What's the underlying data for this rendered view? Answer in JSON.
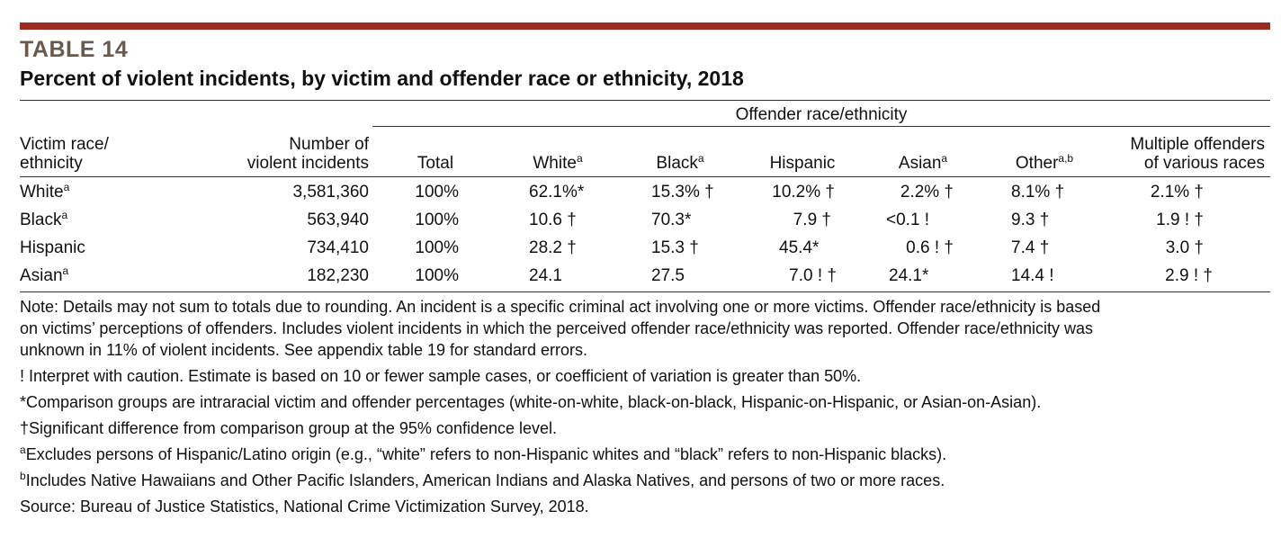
{
  "table_number": "TABLE 14",
  "title": "Percent of violent incidents, by victim and offender race or ethnicity, 2018",
  "header": {
    "group_label": "Offender race/ethnicity",
    "victim_col_line1": "Victim race/",
    "victim_col_line2": "ethnicity",
    "number_col_line1": "Number of",
    "number_col_line2": "violent incidents",
    "total": "Total",
    "white": "White",
    "white_sup": "a",
    "black": "Black",
    "black_sup": "a",
    "hispanic": "Hispanic",
    "asian": "Asian",
    "asian_sup": "a",
    "other": "Other",
    "other_sup": "a,b",
    "multiple_line1": "Multiple offenders",
    "multiple_line2": "of various races"
  },
  "rows": [
    {
      "victim": "White",
      "sup": "a",
      "number": "3,581,360",
      "total": "100%",
      "white": "62.1%*",
      "black": "15.3% †",
      "hispanic": "10.2% †",
      "asian": "2.2% †",
      "other": "8.1% †",
      "multiple": "2.1% †"
    },
    {
      "victim": "Black",
      "sup": "a",
      "number": "563,940",
      "total": "100%",
      "white": "10.6 †",
      "black": "70.3*",
      "hispanic": "7.9 †",
      "asian": "<0.1 !",
      "other": "9.3 †",
      "multiple": "1.9 ! †"
    },
    {
      "victim": "Hispanic",
      "sup": "",
      "number": "734,410",
      "total": "100%",
      "white": "28.2 †",
      "black": "15.3 †",
      "hispanic": "45.4*",
      "asian": "0.6 ! †",
      "other": "7.4 †",
      "multiple": "3.0 †"
    },
    {
      "victim": "Asian",
      "sup": "a",
      "number": "182,230",
      "total": "100%",
      "white": "24.1",
      "black": "27.5",
      "hispanic": "7.0 ! †",
      "asian": "24.1*",
      "other": "14.4 !",
      "multiple": "2.9 ! †"
    }
  ],
  "notes": {
    "note_line1": "Note: Details may not sum to totals due to rounding. An incident is a specific criminal act involving one or more victims. Offender race/ethnicity is based",
    "note_line2": "on victims’ perceptions of offenders. Includes violent incidents in which the perceived offender race/ethnicity was reported. Offender race/ethnicity was",
    "note_line3": "unknown in 11% of violent incidents. See appendix table 19 for standard errors.",
    "caution": "! Interpret with caution. Estimate is based on 10 or fewer sample cases, or coefficient of variation is greater than 50%.",
    "comparison": "*Comparison groups are intraracial victim and offender percentages (white-on-white, black-on-black, Hispanic-on-Hispanic, or Asian-on-Asian).",
    "significance": "†Significant difference from comparison group at the 95% confidence level.",
    "footnote_a_mark": "a",
    "footnote_a": "Excludes persons of Hispanic/Latino origin (e.g., “white” refers to non-Hispanic whites and “black” refers to non-Hispanic blacks).",
    "footnote_b_mark": "b",
    "footnote_b": "Includes Native Hawaiians and Other Pacific Islanders, American Indians and Alaska Natives, and persons of two or more races.",
    "source": "Source: Bureau of Justice Statistics, National Crime Victimization Survey, 2018."
  },
  "colors": {
    "top_bar": "#9b2a1f",
    "table_number": "#6a5a4c"
  }
}
